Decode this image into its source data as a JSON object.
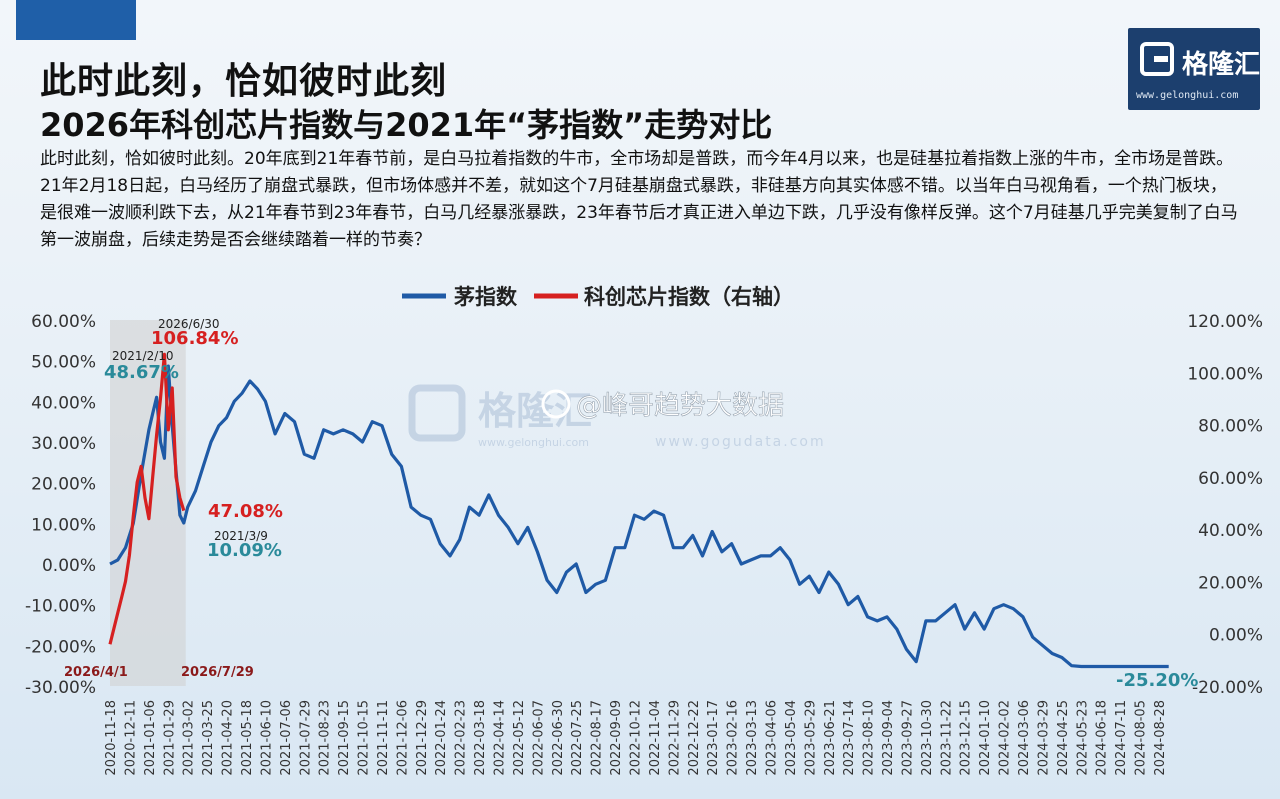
{
  "header": {
    "title_line1": "此时此刻，恰如彼时此刻",
    "title_line2": "2026年科创芯片指数与2021年“茅指数”走势对比",
    "description": "此时此刻，恰如彼时此刻。20年底到21年春节前，是白马拉着指数的牛市，全市场却是普跌，而今年4月以来，也是硅基拉着指数上涨的牛市，全市场是普跌。21年2月18日起，白马经历了崩盘式暴跌，但市场体感并不差，就如这个7月硅基崩盘式暴跌，非硅基方向其实体感不错。以当年白马视角看，一个热门板块，是很难一波顺利跌下去，从21年春节到23年春节，白马几经暴涨暴跌，23年春节后才真正进入单边下跌，几乎没有像样反弹。这个7月硅基几乎完美复制了白马第一波崩盘，后续走势是否会继续踏着一样的节奏？"
  },
  "logo": {
    "name": "格隆汇",
    "url": "www.gelonghui.com"
  },
  "watermark": {
    "left": "格隆汇",
    "left_url": "www.gelonghui.com",
    "right": "@峰哥趋势大数据",
    "right_url": "www.gogudata.com"
  },
  "colors": {
    "mao": "#1f5aa6",
    "kechuang": "#d62020",
    "shade": "#cfcfcf",
    "accent": "#1f5fa8",
    "teal": "#2a8a9a",
    "darkred": "#8b1a1a"
  },
  "chart_data": {
    "type": "line",
    "legend_placement": "top-center",
    "legend": [
      "茅指数",
      "科创芯片指数（右轴）"
    ],
    "left_axis": {
      "ylim": [
        -30,
        60
      ],
      "ticks": [
        "60.00%",
        "50.00%",
        "40.00%",
        "30.00%",
        "20.00%",
        "10.00%",
        "0.00%",
        "-10.00%",
        "-20.00%",
        "-30.00%"
      ]
    },
    "right_axis": {
      "ylim": [
        -20,
        120
      ],
      "ticks": [
        "120.00%",
        "100.00%",
        "80.00%",
        "60.00%",
        "40.00%",
        "20.00%",
        "0.00%",
        "-20.00%"
      ]
    },
    "x_ticks": [
      "2020-11-18",
      "2020-12-11",
      "2021-01-06",
      "2021-01-29",
      "2021-03-02",
      "2021-03-25",
      "2021-04-20",
      "2021-05-18",
      "2021-06-10",
      "2021-07-06",
      "2021-07-29",
      "2021-08-23",
      "2021-09-15",
      "2021-10-15",
      "2021-11-11",
      "2021-12-06",
      "2021-12-29",
      "2022-01-24",
      "2022-02-23",
      "2022-03-18",
      "2022-04-14",
      "2022-05-12",
      "2022-06-07",
      "2022-06-30",
      "2022-07-25",
      "2022-08-17",
      "2022-09-09",
      "2022-10-12",
      "2022-11-04",
      "2022-11-29",
      "2022-12-22",
      "2023-01-17",
      "2023-02-16",
      "2023-03-13",
      "2023-04-06",
      "2023-05-04",
      "2023-05-29",
      "2023-06-21",
      "2023-07-14",
      "2023-08-10",
      "2023-09-04",
      "2023-09-27",
      "2023-10-30",
      "2023-11-22",
      "2023-12-15",
      "2024-01-10",
      "2024-02-02",
      "2024-03-06",
      "2024-03-29",
      "2024-04-25",
      "2024-05-23",
      "2024-06-18",
      "2024-07-11",
      "2024-08-05",
      "2024-08-28"
    ],
    "shaded_region": {
      "start_tick": 0,
      "end_tick": 3.9
    },
    "series": [
      {
        "name": "茅指数",
        "axis": "left",
        "x": [
          0,
          0.4,
          0.8,
          1.2,
          1.6,
          2.0,
          2.2,
          2.4,
          2.6,
          2.8,
          3.0,
          3.2,
          3.4,
          3.6,
          3.8,
          4.0,
          4.4,
          4.8,
          5.2,
          5.6,
          6.0,
          6.4,
          6.8,
          7.2,
          7.6,
          8.0,
          8.5,
          9.0,
          9.5,
          10.0,
          10.5,
          11.0,
          11.5,
          12.0,
          12.5,
          13.0,
          13.5,
          14.0,
          14.5,
          15.0,
          15.5,
          16.0,
          16.5,
          17.0,
          17.5,
          18.0,
          18.5,
          19.0,
          19.5,
          20.0,
          20.5,
          21.0,
          21.5,
          22.0,
          22.5,
          23.0,
          23.5,
          24.0,
          24.5,
          25.0,
          25.5,
          26.0,
          26.5,
          27.0,
          27.5,
          28.0,
          28.5,
          29.0,
          29.5,
          30.0,
          30.5,
          31.0,
          31.5,
          32.0,
          32.5,
          33.0,
          33.5,
          34.0,
          34.5,
          35.0,
          35.5,
          36.0,
          36.5,
          37.0,
          37.5,
          38.0,
          38.5,
          39.0,
          39.5,
          40.0,
          40.5,
          41.0,
          41.5,
          42.0,
          42.5,
          43.0,
          43.5,
          44.0,
          44.5,
          45.0,
          45.5,
          46.0,
          46.5,
          47.0,
          47.5,
          48.0,
          48.5,
          49.0,
          49.5,
          50.0,
          50.5,
          51.0,
          51.5,
          52.0,
          52.5,
          53.0,
          53.5,
          54.0,
          54.5
        ],
        "values": [
          0,
          1,
          4,
          10,
          22,
          33,
          37,
          41,
          30,
          26,
          48.67,
          34,
          23,
          12,
          10.09,
          14,
          18,
          24,
          30,
          34,
          36,
          40,
          42,
          45,
          43,
          40,
          32,
          37,
          35,
          27,
          26,
          33,
          32,
          33,
          32,
          30,
          35,
          34,
          27,
          24,
          14,
          12,
          11,
          5,
          2,
          6,
          14,
          12,
          17,
          12,
          9,
          5,
          9,
          3,
          -4,
          -7,
          -2,
          0,
          -7,
          -5,
          -4,
          4,
          4,
          12,
          11,
          13,
          12,
          4,
          4,
          7,
          2,
          8,
          3,
          5,
          0,
          1,
          2,
          2,
          4,
          1,
          -5,
          -3,
          -7,
          -2,
          -5,
          -10,
          -8,
          -13,
          -14,
          -13,
          -16,
          -21,
          -24,
          -14,
          -14,
          -12,
          -10,
          -16,
          -12,
          -16,
          -11,
          -10,
          -11,
          -13,
          -18,
          -20,
          -22,
          -23,
          -25,
          -25.2,
          -25.2,
          -25.2,
          -25.2,
          -25.2,
          -25.2,
          -25.2,
          -25.2,
          -25.2,
          -25.2
        ]
      },
      {
        "name": "科创芯片指数（右轴）",
        "axis": "right",
        "x": [
          0,
          0.2,
          0.4,
          0.6,
          0.8,
          1.0,
          1.2,
          1.4,
          1.6,
          1.8,
          2.0,
          2.2,
          2.4,
          2.6,
          2.8,
          3.0,
          3.2,
          3.4,
          3.6,
          3.8
        ],
        "values": [
          -4,
          2,
          8,
          14,
          20,
          30,
          45,
          58,
          64,
          52,
          44,
          60,
          76,
          90,
          106.84,
          78,
          94,
          60,
          52,
          47.08
        ]
      }
    ],
    "annotations": [
      {
        "label": "2026/6/30",
        "value_text": "106.84%",
        "series": "科创芯片指数（右轴）"
      },
      {
        "label": "2021/2/10",
        "value_text": "48.67%",
        "series": "茅指数"
      },
      {
        "label": "",
        "value_text": "47.08%",
        "series": "科创芯片指数（右轴）"
      },
      {
        "label": "2021/3/9",
        "value_text": "10.09%",
        "series": "茅指数"
      },
      {
        "label": "",
        "value_text": "-25.20%",
        "series": "茅指数"
      },
      {
        "label": "2026/4/1",
        "value_text": "",
        "series": "科创芯片指数（右轴）"
      },
      {
        "label": "2026/7/29",
        "value_text": "",
        "series": "科创芯片指数（右轴）"
      }
    ]
  }
}
